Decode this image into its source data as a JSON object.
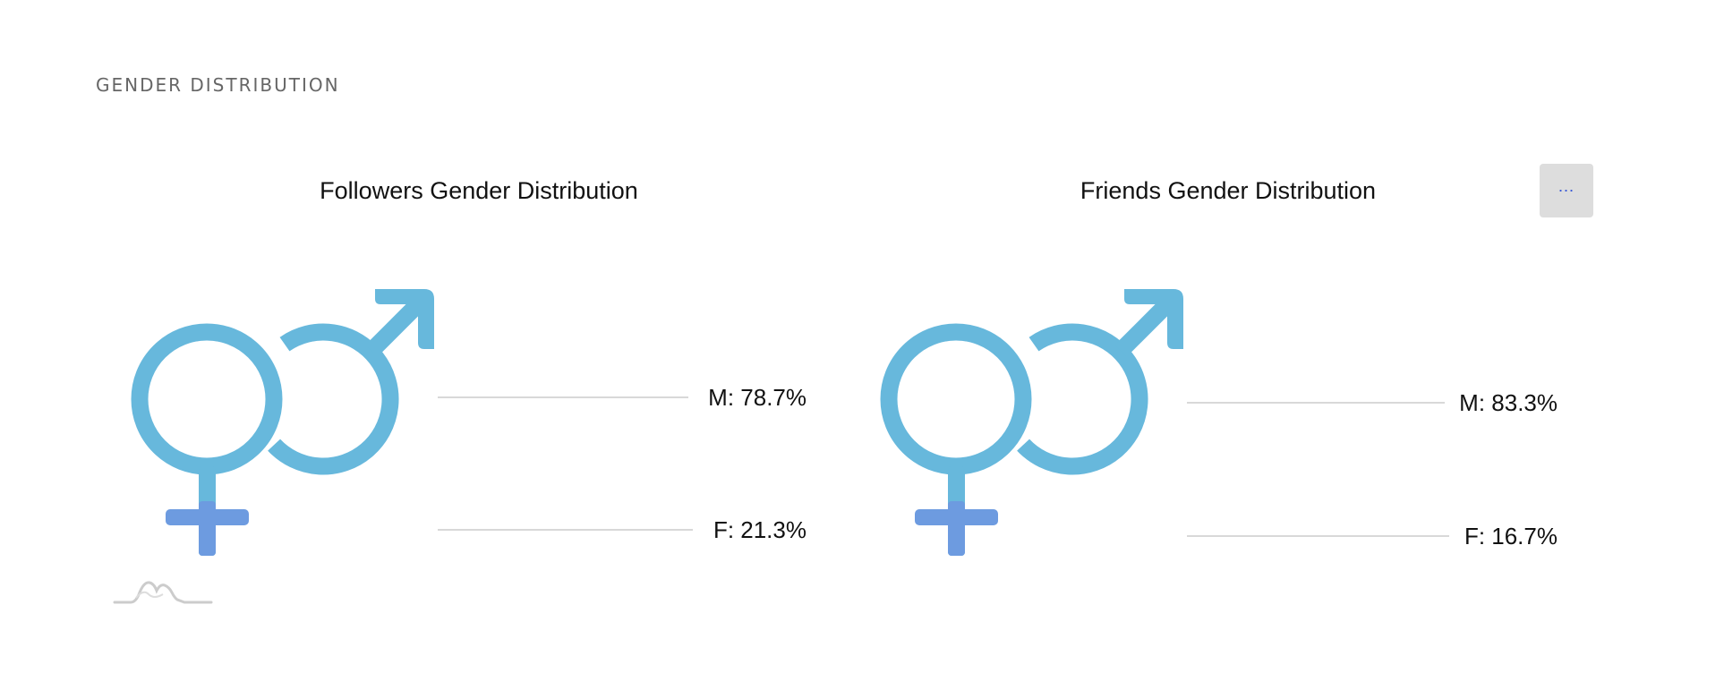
{
  "section": {
    "title": "GENDER DISTRIBUTION"
  },
  "menu": {
    "label": "⋯",
    "icon": "more-dots-icon"
  },
  "colors": {
    "male": "#67b8dc",
    "female_fill": "#6d9be0",
    "leader": "#cccccc"
  },
  "chart_data": [
    {
      "type": "pictorial",
      "title": "Followers Gender Distribution",
      "series": [
        {
          "label": "M",
          "value": 78.7,
          "display": "M: 78.7%"
        },
        {
          "label": "F",
          "value": 21.3,
          "display": "F: 21.3%"
        }
      ]
    },
    {
      "type": "pictorial",
      "title": "Friends Gender Distribution",
      "series": [
        {
          "label": "M",
          "value": 83.3,
          "display": "M: 83.3%"
        },
        {
          "label": "F",
          "value": 16.7,
          "display": "F: 16.7%"
        }
      ]
    }
  ]
}
